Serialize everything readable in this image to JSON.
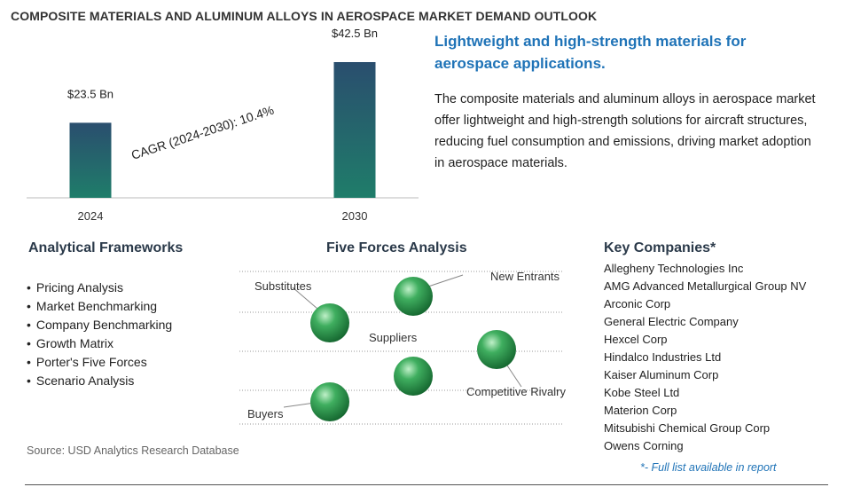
{
  "title": "COMPOSITE MATERIALS AND ALUMINUM ALLOYS IN AEROSPACE MARKET DEMAND OUTLOOK",
  "headline": "Lightweight and high-strength materials for aerospace applications.",
  "description": "The composite materials and aluminum alloys in aerospace market offer lightweight and high-strength solutions for aircraft structures, reducing fuel consumption and emissions, driving market adoption in aerospace materials.",
  "chart_data": {
    "type": "bar",
    "categories": [
      "2024",
      "2030"
    ],
    "values": [
      23.5,
      42.5
    ],
    "value_labels": [
      "$23.5 Bn",
      "$42.5 Bn"
    ],
    "annotation": "CAGR (2024-2030):  10.4%",
    "ylim": [
      0,
      42.5
    ],
    "grid": false,
    "bar_gradient": [
      "#2a4e6e",
      "#1f7d6a"
    ]
  },
  "analytical_frameworks": {
    "title": "Analytical Frameworks",
    "items": [
      "Pricing Analysis",
      "Market Benchmarking",
      "Company Benchmarking",
      "Growth Matrix",
      "Porter's Five Forces",
      "Scenario Analysis"
    ]
  },
  "five_forces": {
    "title": "Five Forces Analysis",
    "labels": {
      "substitutes": "Substitutes",
      "new_entrants": "New Entrants",
      "suppliers": "Suppliers",
      "competitive_rivalry": "Competitive Rivalry",
      "buyers": "Buyers"
    }
  },
  "key_companies": {
    "title": "Key Companies*",
    "items": [
      "Allegheny Technologies Inc",
      "AMG Advanced Metallurgical Group NV",
      "Arconic Corp",
      "General Electric Company",
      "Hexcel Corp",
      "Hindalco Industries Ltd",
      "Kaiser Aluminum Corp",
      "Kobe Steel Ltd",
      "Materion Corp",
      "Mitsubishi Chemical Group Corp",
      "Owens Corning"
    ],
    "note": "*- Full list available in report"
  },
  "source": "Source: USD Analytics Research Database",
  "colors": {
    "headline": "#1f73b7",
    "sphere": "#2e9a4f",
    "sphere_dark": "#136b2f"
  }
}
